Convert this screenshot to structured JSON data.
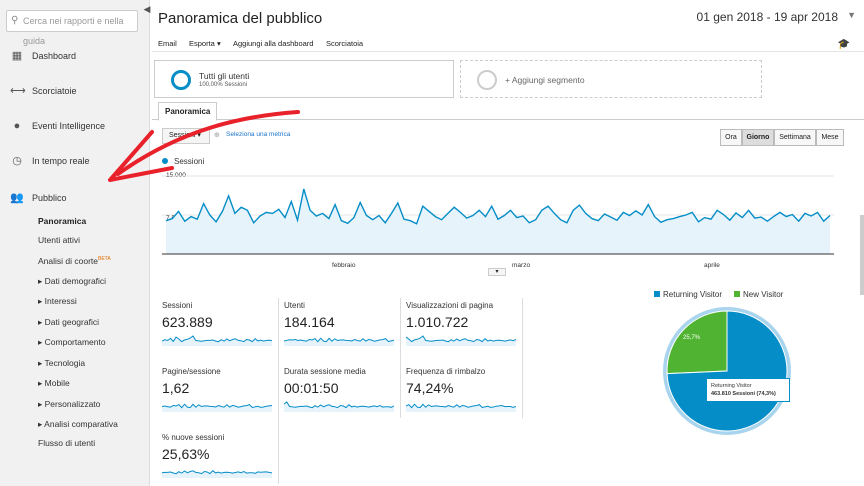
{
  "sidebar": {
    "search_placeholder": "Cerca nei rapporti e nella guida",
    "items": [
      {
        "label": "Dashboard",
        "icon": "grid-icon"
      },
      {
        "label": "Scorciatoie",
        "icon": "shortcut-arrows-icon"
      },
      {
        "label": "Eventi Intelligence",
        "icon": "lightbulb-icon"
      },
      {
        "label": "In tempo reale",
        "icon": "clock-icon"
      },
      {
        "label": "Pubblico",
        "icon": "people-icon"
      }
    ],
    "subitems": [
      "Panoramica",
      "Utenti attivi",
      "Analisi di coorte",
      "Dati demografici",
      "Interessi",
      "Dati geografici",
      "Comportamento",
      "Tecnologia",
      "Mobile",
      "Personalizzato",
      "Analisi comparativa",
      "Flusso di utenti"
    ],
    "beta_label": "BETA"
  },
  "header": {
    "title": "Panoramica del pubblico",
    "date_range": "01 gen 2018 - 19 apr 2018"
  },
  "toolbar": {
    "email": "Email",
    "export": "Esporta",
    "add_dashboard": "Aggiungi alla dashboard",
    "shortcut": "Scorciatoia"
  },
  "segments": {
    "active_label": "Tutti gli utenti",
    "active_sub": "100,00% Sessioni",
    "add_label": "+ Aggiungi segmento"
  },
  "tabs": {
    "overview": "Panoramica"
  },
  "chart_controls": {
    "metric": "Sessioni",
    "vs": "⊕",
    "select_metric": "Seleziona una metrica",
    "granularity": [
      "Ora",
      "Giorno",
      "Settimana",
      "Mese"
    ],
    "selected": "Giorno"
  },
  "chart_data": {
    "type": "line",
    "series": [
      {
        "name": "Sessioni",
        "values": [
          6400,
          6800,
          8200,
          6300,
          7200,
          6700,
          9700,
          7500,
          6200,
          8200,
          11200,
          7800,
          9000,
          8400,
          6000,
          7300,
          8000,
          7800,
          8600,
          7000,
          10100,
          6500,
          12500,
          8400,
          7300,
          7800,
          6800,
          9500,
          6400,
          5900,
          7000,
          9900,
          7400,
          6600,
          7400,
          6000,
          7800,
          9800,
          6700,
          6400,
          5800,
          9200,
          8200,
          7200,
          6600,
          7800,
          9000,
          8000,
          6900,
          7400,
          8400,
          7200,
          9200,
          6700,
          7400,
          8400,
          7000,
          7300,
          6000,
          6600,
          8400,
          9200,
          7800,
          6600,
          6000,
          8400,
          9400,
          7800,
          6800,
          6400,
          7700,
          7100,
          6500,
          8000,
          7400,
          8300,
          7500,
          9500,
          7200,
          6100,
          6600,
          6800,
          7200,
          7500,
          8000,
          6200,
          7000,
          6700,
          8400,
          7600,
          6500,
          7900,
          7000,
          8400,
          6900,
          7100,
          6300,
          7200,
          8000,
          7200,
          7600,
          6300,
          7800,
          7300,
          8000,
          6300,
          7400
        ]
      }
    ],
    "ylabels": [
      "15.000",
      "7.500"
    ],
    "xlabels": [
      "febbraio",
      "marzo",
      "aprile"
    ],
    "ylim": [
      0,
      15000
    ]
  },
  "stats": [
    {
      "label": "Sessioni",
      "value": "623.889"
    },
    {
      "label": "Utenti",
      "value": "184.164"
    },
    {
      "label": "Visualizzazioni di pagina",
      "value": "1.010.722"
    },
    {
      "label": "Pagine/sessione",
      "value": "1,62"
    },
    {
      "label": "Durata sessione media",
      "value": "00:01:50"
    },
    {
      "label": "Frequenza di rimbalzo",
      "value": "74,24%"
    },
    {
      "label": "% nuove sessioni",
      "value": "25,63%"
    }
  ],
  "pie": {
    "legend": [
      {
        "label": "Returning Visitor",
        "color": "#058dc7"
      },
      {
        "label": "New Visitor",
        "color": "#50b432"
      }
    ],
    "slices": [
      {
        "label": "Returning Visitor",
        "value": 74.3,
        "color": "#058dc7"
      },
      {
        "label": "New Visitor",
        "value": 25.7,
        "color": "#50b432"
      }
    ],
    "new_pct_label": "25,7%",
    "tooltip_title": "Returning Visitor",
    "tooltip_value": "463.810 Sessioni (74,3%)"
  },
  "annotation_color": "#e8212a"
}
